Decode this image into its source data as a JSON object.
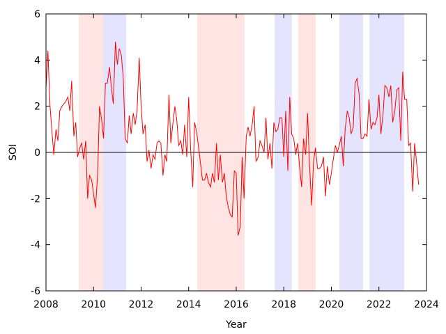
{
  "chart_data": {
    "type": "line",
    "xlabel": "Year",
    "ylabel": "SOI",
    "xlim": [
      2008,
      2024
    ],
    "xticks": [
      2008,
      2010,
      2012,
      2014,
      2016,
      2018,
      2020,
      2022,
      2024
    ],
    "ylim": [
      -6,
      6
    ],
    "yticks": [
      -6,
      -4,
      -2,
      0,
      2,
      4,
      6
    ],
    "reference_line": 0,
    "shaded_regions": [
      {
        "x": [
          2009.38,
          2010.4
        ],
        "color": "#ffe4e4"
      },
      {
        "x": [
          2010.4,
          2011.37
        ],
        "color": "#e4e4ff"
      },
      {
        "x": [
          2014.36,
          2016.35
        ],
        "color": "#ffe4e4"
      },
      {
        "x": [
          2017.61,
          2018.34
        ],
        "color": "#e4e4ff"
      },
      {
        "x": [
          2018.61,
          2019.34
        ],
        "color": "#ffe4e4"
      },
      {
        "x": [
          2020.34,
          2021.33
        ],
        "color": "#e4e4ff"
      },
      {
        "x": [
          2021.6,
          2023.06
        ],
        "color": "#e4e4ff"
      }
    ],
    "x": [
      2008.0,
      2008.08,
      2008.17,
      2008.25,
      2008.33,
      2008.42,
      2008.5,
      2008.58,
      2008.67,
      2008.75,
      2008.83,
      2008.92,
      2009.0,
      2009.08,
      2009.17,
      2009.25,
      2009.33,
      2009.42,
      2009.5,
      2009.58,
      2009.67,
      2009.75,
      2009.83,
      2009.92,
      2010.0,
      2010.08,
      2010.17,
      2010.25,
      2010.33,
      2010.42,
      2010.5,
      2010.58,
      2010.67,
      2010.75,
      2010.83,
      2010.92,
      2011.0,
      2011.08,
      2011.17,
      2011.25,
      2011.33,
      2011.42,
      2011.5,
      2011.58,
      2011.67,
      2011.75,
      2011.83,
      2011.92,
      2012.0,
      2012.08,
      2012.17,
      2012.25,
      2012.33,
      2012.42,
      2012.5,
      2012.58,
      2012.67,
      2012.75,
      2012.83,
      2012.92,
      2013.0,
      2013.08,
      2013.17,
      2013.25,
      2013.33,
      2013.42,
      2013.5,
      2013.58,
      2013.67,
      2013.75,
      2013.83,
      2013.92,
      2014.0,
      2014.08,
      2014.17,
      2014.25,
      2014.33,
      2014.42,
      2014.5,
      2014.58,
      2014.67,
      2014.75,
      2014.83,
      2014.92,
      2015.0,
      2015.08,
      2015.17,
      2015.25,
      2015.33,
      2015.42,
      2015.5,
      2015.58,
      2015.67,
      2015.75,
      2015.83,
      2015.92,
      2016.0,
      2016.08,
      2016.17,
      2016.25,
      2016.33,
      2016.42,
      2016.5,
      2016.58,
      2016.67,
      2016.75,
      2016.83,
      2016.92,
      2017.0,
      2017.08,
      2017.17,
      2017.25,
      2017.33,
      2017.42,
      2017.5,
      2017.58,
      2017.67,
      2017.75,
      2017.83,
      2017.92,
      2018.0,
      2018.08,
      2018.17,
      2018.25,
      2018.33,
      2018.42,
      2018.5,
      2018.58,
      2018.67,
      2018.75,
      2018.83,
      2018.92,
      2019.0,
      2019.08,
      2019.17,
      2019.25,
      2019.33,
      2019.42,
      2019.5,
      2019.58,
      2019.67,
      2019.75,
      2019.83,
      2019.92,
      2020.0,
      2020.08,
      2020.17,
      2020.25,
      2020.33,
      2020.42,
      2020.5,
      2020.58,
      2020.67,
      2020.75,
      2020.83,
      2020.92,
      2021.0,
      2021.08,
      2021.17,
      2021.25,
      2021.33,
      2021.42,
      2021.5,
      2021.58,
      2021.67,
      2021.75,
      2021.83,
      2021.92,
      2022.0,
      2022.08,
      2022.17,
      2022.25,
      2022.33,
      2022.42,
      2022.5,
      2022.58,
      2022.67,
      2022.75,
      2022.83,
      2022.92,
      2023.0,
      2023.08,
      2023.17,
      2023.25,
      2023.33,
      2023.42,
      2023.5,
      2023.58,
      2023.67
    ],
    "series": [
      {
        "color": "#ff0000",
        "values": [
          2.8,
          4.4,
          2.0,
          0.9,
          -0.1,
          1.0,
          0.5,
          1.8,
          2.0,
          2.1,
          2.2,
          2.4,
          1.8,
          3.1,
          0.7,
          1.3,
          -0.2,
          0.2,
          0.4,
          -0.3,
          0.5,
          -2.0,
          -1.0,
          -1.2,
          -1.8,
          -2.4,
          -1.0,
          2.0,
          1.5,
          0.6,
          3.0,
          3.0,
          3.7,
          2.8,
          2.1,
          4.8,
          3.8,
          4.5,
          4.2,
          3.2,
          0.6,
          0.4,
          1.6,
          0.8,
          1.7,
          1.2,
          1.8,
          4.1,
          2.0,
          0.8,
          1.2,
          -0.4,
          0.1,
          -0.7,
          -0.1,
          -0.3,
          0.4,
          0.5,
          0.4,
          -1.0,
          -0.1,
          -0.4,
          2.5,
          0.4,
          1.2,
          2.0,
          1.4,
          0.3,
          0.5,
          -0.1,
          1.2,
          -0.2,
          2.4,
          0.2,
          -1.5,
          1.3,
          0.9,
          0.2,
          -0.5,
          -1.2,
          -1.2,
          -0.9,
          -1.3,
          -1.5,
          -0.9,
          -1.3,
          0.4,
          -1.2,
          -0.1,
          -1.3,
          -0.9,
          -1.9,
          -2.4,
          -2.7,
          -2.8,
          -0.8,
          -0.9,
          -3.6,
          -3.2,
          -0.2,
          -2.0,
          0.7,
          1.1,
          0.7,
          1.2,
          2.0,
          -0.4,
          -0.2,
          0.5,
          0.3,
          0.0,
          1.5,
          -0.3,
          0.4,
          -0.7,
          1.3,
          0.9,
          1.0,
          1.5,
          1.5,
          -0.2,
          1.8,
          -0.8,
          2.4,
          0.8,
          0.6,
          -0.1,
          0.4,
          -0.7,
          -1.5,
          0.6,
          -0.1,
          1.7,
          -0.5,
          -2.3,
          -0.4,
          0.2,
          -0.7,
          -0.7,
          -0.6,
          -0.2,
          -1.9,
          -0.6,
          -1.4,
          -0.9,
          -0.3,
          0.3,
          0.0,
          0.3,
          0.7,
          -0.6,
          1.0,
          1.8,
          1.5,
          0.8,
          1.1,
          3.0,
          3.2,
          2.5,
          0.6,
          0.6,
          0.8,
          0.7,
          2.3,
          1.0,
          1.3,
          1.2,
          1.5,
          2.5,
          0.8,
          1.6,
          2.9,
          2.8,
          2.4,
          2.9,
          1.3,
          1.8,
          2.7,
          2.8,
          0.5,
          3.5,
          2.3,
          2.3,
          0.3,
          0.4,
          -1.7,
          0.4,
          -0.4,
          -1.4
        ]
      }
    ]
  }
}
